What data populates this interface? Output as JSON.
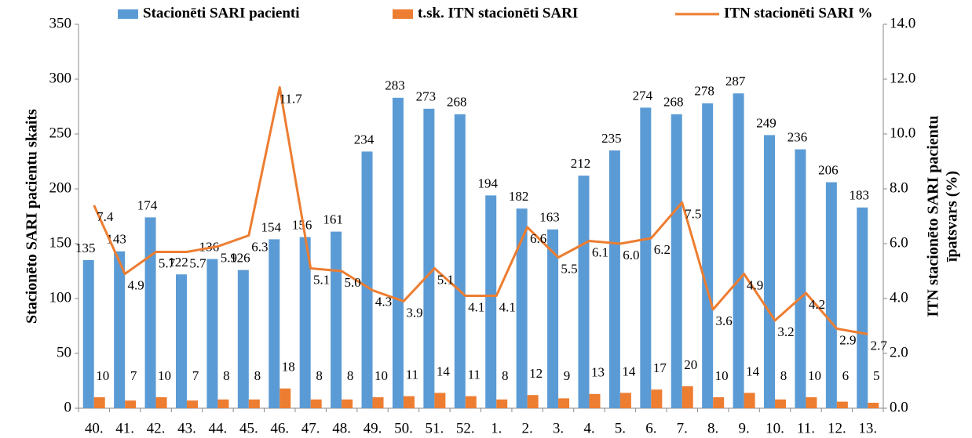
{
  "chart_data": {
    "type": "bar-line",
    "categories": [
      "40.",
      "41.",
      "42.",
      "43.",
      "44.",
      "45.",
      "46.",
      "47.",
      "48.",
      "49.",
      "50.",
      "51.",
      "52.",
      "1.",
      "2.",
      "3.",
      "4.",
      "5.",
      "6.",
      "7.",
      "8.",
      "9.",
      "10.",
      "11.",
      "12.",
      "13."
    ],
    "series": [
      {
        "name": "Stacionēti SARI pacienti",
        "color": "#5b9bd5",
        "kind": "bar",
        "values": [
          135,
          143,
          174,
          122,
          136,
          126,
          154,
          156,
          161,
          234,
          283,
          273,
          268,
          194,
          182,
          163,
          212,
          235,
          274,
          268,
          278,
          287,
          249,
          236,
          206,
          183
        ]
      },
      {
        "name": "t.sk. ITN stacionēti SARI",
        "color": "#ed7d31",
        "kind": "bar",
        "values": [
          10,
          7,
          10,
          7,
          8,
          8,
          18,
          8,
          8,
          10,
          11,
          14,
          11,
          8,
          12,
          9,
          13,
          14,
          17,
          20,
          10,
          14,
          8,
          10,
          6,
          5
        ]
      },
      {
        "name": "ITN stacionēti SARI %",
        "color": "#ed7d31",
        "kind": "line",
        "axis": "y2",
        "values": [
          7.4,
          4.9,
          5.7,
          5.7,
          5.9,
          6.3,
          11.7,
          5.1,
          5.0,
          4.3,
          3.9,
          5.1,
          4.1,
          4.1,
          6.6,
          5.5,
          6.1,
          6.0,
          6.2,
          7.5,
          3.6,
          4.9,
          3.2,
          4.2,
          2.9,
          2.7
        ],
        "value_labels": [
          "7.4",
          "4.9",
          "5.7",
          "5.7",
          "5.9",
          "6.3",
          "11.7",
          "5.1",
          "5.0",
          "4.3",
          "3.9",
          "5.1",
          "4.1",
          "4.1",
          "6.6",
          "5.5",
          "6.1",
          "6.0",
          "6.2",
          "7.5",
          "3.6",
          "4.9",
          "3.2",
          "4.2",
          "2.9",
          "2.7"
        ]
      }
    ],
    "ylabel": "Stacionēto SARI pacientu skaits",
    "y2label": [
      "ITN stacionēto SARI pacientu",
      "īpatsvars (%)"
    ],
    "ylim": [
      0,
      350
    ],
    "yticks": [
      0,
      50,
      100,
      150,
      200,
      250,
      300,
      350
    ],
    "y2lim": [
      0,
      14
    ],
    "y2ticks": [
      {
        "value": 0,
        "label": "0.0"
      },
      {
        "value": 2,
        "label": "2.0"
      },
      {
        "value": 4,
        "label": "4.0"
      },
      {
        "value": 6,
        "label": "6.0"
      },
      {
        "value": 8,
        "label": "8.0"
      },
      {
        "value": 10,
        "label": "10.0"
      },
      {
        "value": 12,
        "label": "12.0"
      },
      {
        "value": 14,
        "label": "14.0"
      }
    ]
  }
}
